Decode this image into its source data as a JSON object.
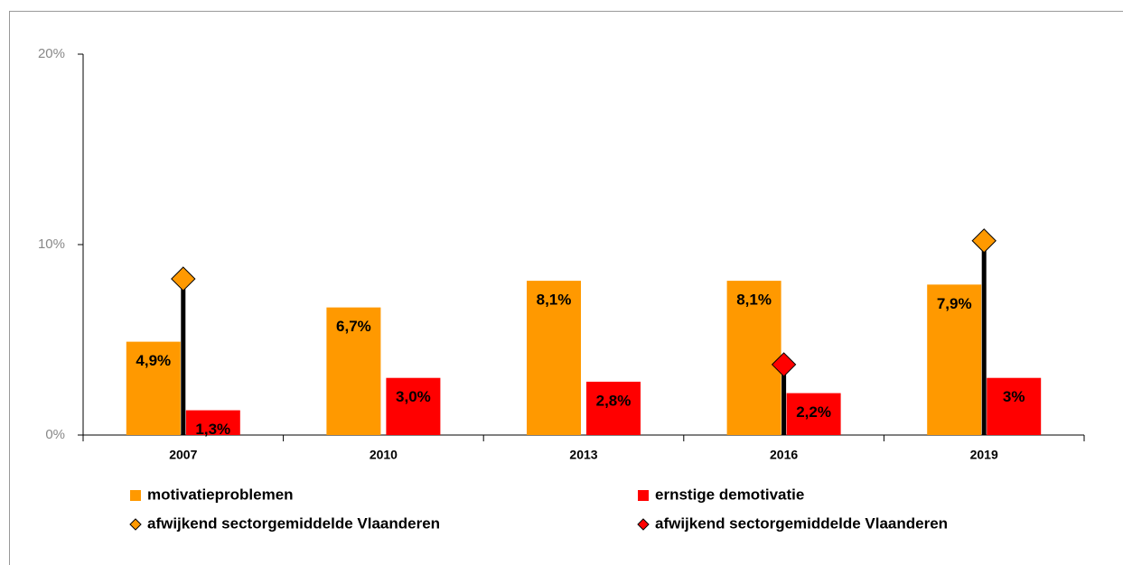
{
  "chart_data": {
    "type": "bar",
    "categories": [
      "2007",
      "2010",
      "2013",
      "2016",
      "2019"
    ],
    "series": [
      {
        "name": "motivatieproblemen",
        "color": "#ff9900",
        "values": [
          4.9,
          6.7,
          8.1,
          8.1,
          7.9
        ],
        "value_labels": [
          "4,9%",
          "6,7%",
          "8,1%",
          "8,1%",
          "7,9%"
        ]
      },
      {
        "name": "ernstige demotivatie",
        "color": "#ff0000",
        "values": [
          1.3,
          3.0,
          2.8,
          2.2,
          3
        ],
        "value_labels": [
          "1,3%",
          "3,0%",
          "2,8%",
          "2,2%",
          "3%"
        ]
      },
      {
        "name": "afwijkend sectorgemiddelde Vlaanderen",
        "color": "#ff9900",
        "marker": "diamond",
        "values": [
          8.2,
          null,
          null,
          null,
          10.2
        ]
      },
      {
        "name": "afwijkend sectorgemiddelde Vlaanderen",
        "color": "#ff0000",
        "marker": "diamond",
        "values": [
          null,
          null,
          null,
          3.7,
          null
        ]
      }
    ],
    "ylim": [
      0,
      20
    ],
    "yticks": [
      {
        "value": 0,
        "label": "0%"
      },
      {
        "value": 10,
        "label": "10%"
      },
      {
        "value": 20,
        "label": "20%"
      }
    ]
  }
}
